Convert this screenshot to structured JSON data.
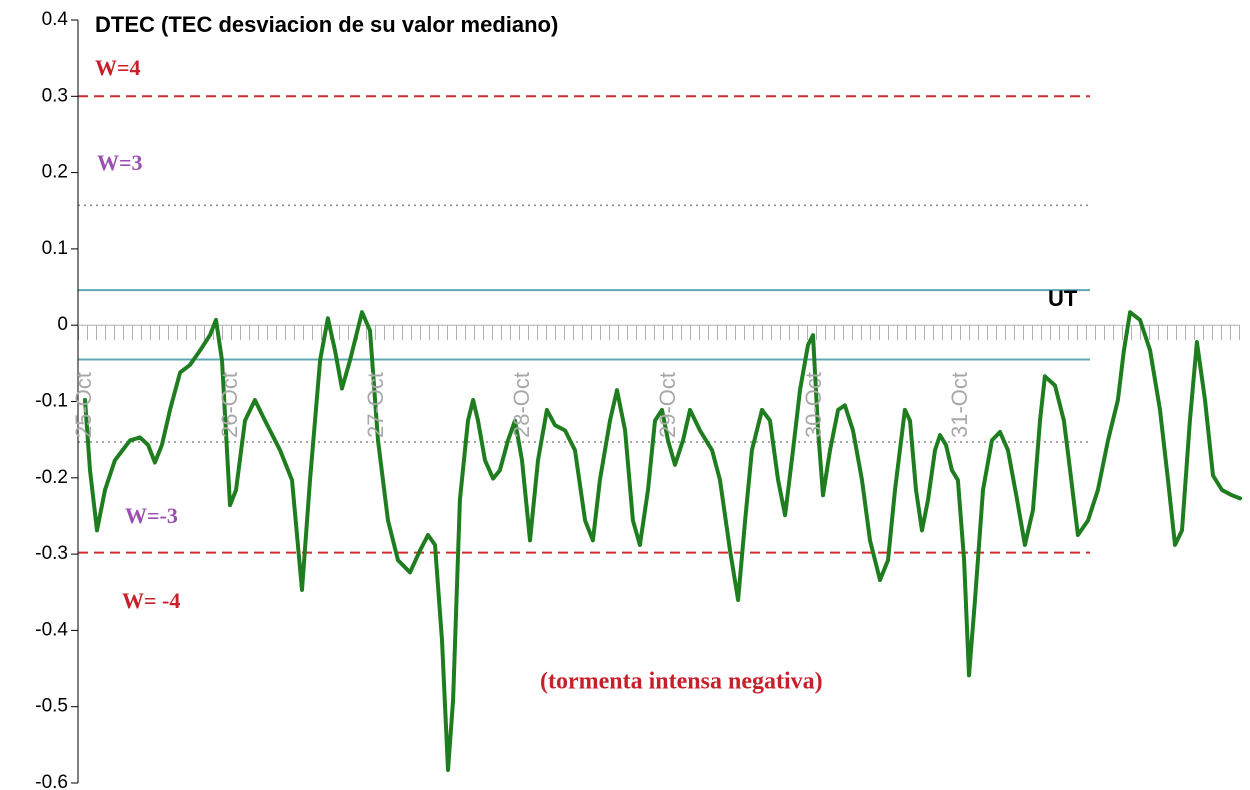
{
  "chart_data": {
    "type": "line",
    "title": "DTEC (TEC desviacion de su valor mediano)",
    "annotations": [
      "W=4",
      "W=3",
      "W=-3",
      "W= -4",
      "UT",
      "(tormenta intensa negativa)"
    ],
    "reference_lines": [
      {
        "value": 0.3,
        "color": "#d42a2a",
        "style": "dashed"
      },
      {
        "value": 0.157,
        "color": "#888888",
        "style": "dotted"
      },
      {
        "value": 0.046,
        "color": "#5fa8b4",
        "style": "solid"
      },
      {
        "value": -0.045,
        "color": "#5fa8b4",
        "style": "solid"
      },
      {
        "value": -0.153,
        "color": "#888888",
        "style": "dotted"
      },
      {
        "value": -0.298,
        "color": "#d42a2a",
        "style": "dashed"
      }
    ],
    "xlim": [
      -0.048,
      7.911
    ],
    "xticks": [
      {
        "value": 0,
        "label": "25-Oct"
      },
      {
        "value": 1,
        "label": "26-Oct"
      },
      {
        "value": 2,
        "label": "27-Oct"
      },
      {
        "value": 3,
        "label": "28-Oct"
      },
      {
        "value": 4,
        "label": "29-Oct"
      },
      {
        "value": 5,
        "label": "30-Oct"
      },
      {
        "value": 6,
        "label": "31-Oct"
      }
    ],
    "ylim": [
      -0.6,
      0.4
    ],
    "yticks": [
      0.4,
      0.3,
      0.2,
      0.1,
      0,
      -0.1,
      -0.2,
      -0.3,
      -0.4,
      -0.5,
      -0.6
    ],
    "series": [
      {
        "color": "#1e7d1e",
        "x": [
          0,
          0.034,
          0.082,
          0.137,
          0.205,
          0.308,
          0.377,
          0.432,
          0.479,
          0.527,
          0.582,
          0.651,
          0.719,
          0.788,
          0.856,
          0.897,
          0.938,
          0.993,
          1.034,
          1.096,
          1.164,
          1.233,
          1.336,
          1.418,
          1.486,
          1.541,
          1.61,
          1.664,
          1.712,
          1.76,
          1.815,
          1.897,
          1.952,
          2.007,
          2.075,
          2.144,
          2.226,
          2.295,
          2.349,
          2.397,
          2.445,
          2.486,
          2.521,
          2.568,
          2.623,
          2.658,
          2.692,
          2.74,
          2.795,
          2.842,
          2.897,
          2.945,
          2.993,
          3.048,
          3.103,
          3.164,
          3.219,
          3.288,
          3.356,
          3.425,
          3.479,
          3.527,
          3.596,
          3.644,
          3.699,
          3.753,
          3.801,
          3.856,
          3.904,
          3.952,
          3.993,
          4.041,
          4.096,
          4.144,
          4.212,
          4.295,
          4.349,
          4.418,
          4.473,
          4.521,
          4.568,
          4.637,
          4.692,
          4.747,
          4.795,
          4.849,
          4.897,
          4.952,
          4.986,
          5.021,
          5.055,
          5.103,
          5.158,
          5.205,
          5.26,
          5.322,
          5.377,
          5.445,
          5.5,
          5.548,
          5.616,
          5.651,
          5.692,
          5.733,
          5.774,
          5.822,
          5.856,
          5.897,
          5.938,
          5.979,
          6.021,
          6.055,
          6.096,
          6.151,
          6.212,
          6.267,
          6.322,
          6.384,
          6.438,
          6.493,
          6.541,
          6.575,
          6.644,
          6.705,
          6.747,
          6.801,
          6.87,
          6.938,
          7.007,
          7.075,
          7.116,
          7.158,
          7.226,
          7.295,
          7.363,
          7.418,
          7.466,
          7.514,
          7.568,
          7.616,
          7.671,
          7.726,
          7.788,
          7.856,
          7.911
        ],
        "values": [
          -0.098,
          -0.19,
          -0.269,
          -0.216,
          -0.177,
          -0.151,
          -0.147,
          -0.157,
          -0.18,
          -0.157,
          -0.111,
          -0.062,
          -0.052,
          -0.033,
          -0.013,
          0.007,
          -0.046,
          -0.236,
          -0.216,
          -0.125,
          -0.098,
          -0.125,
          -0.164,
          -0.203,
          -0.347,
          -0.203,
          -0.046,
          0.009,
          -0.033,
          -0.083,
          -0.046,
          0.017,
          -0.007,
          -0.151,
          -0.256,
          -0.308,
          -0.324,
          -0.295,
          -0.275,
          -0.288,
          -0.413,
          -0.583,
          -0.491,
          -0.229,
          -0.125,
          -0.098,
          -0.125,
          -0.177,
          -0.201,
          -0.19,
          -0.151,
          -0.125,
          -0.177,
          -0.282,
          -0.177,
          -0.111,
          -0.131,
          -0.138,
          -0.164,
          -0.256,
          -0.282,
          -0.203,
          -0.125,
          -0.085,
          -0.138,
          -0.256,
          -0.288,
          -0.216,
          -0.125,
          -0.111,
          -0.151,
          -0.183,
          -0.151,
          -0.111,
          -0.138,
          -0.164,
          -0.203,
          -0.295,
          -0.36,
          -0.256,
          -0.164,
          -0.111,
          -0.125,
          -0.203,
          -0.249,
          -0.164,
          -0.085,
          -0.026,
          -0.013,
          -0.138,
          -0.223,
          -0.164,
          -0.111,
          -0.105,
          -0.138,
          -0.203,
          -0.282,
          -0.334,
          -0.308,
          -0.216,
          -0.111,
          -0.125,
          -0.216,
          -0.269,
          -0.229,
          -0.164,
          -0.144,
          -0.157,
          -0.19,
          -0.203,
          -0.308,
          -0.459,
          -0.36,
          -0.216,
          -0.151,
          -0.14,
          -0.164,
          -0.229,
          -0.288,
          -0.242,
          -0.125,
          -0.067,
          -0.079,
          -0.125,
          -0.19,
          -0.275,
          -0.256,
          -0.216,
          -0.151,
          -0.098,
          -0.033,
          0.017,
          0.007,
          -0.033,
          -0.111,
          -0.203,
          -0.288,
          -0.269,
          -0.125,
          -0.022,
          -0.098,
          -0.197,
          -0.216,
          -0.223,
          -0.227
        ]
      }
    ]
  }
}
